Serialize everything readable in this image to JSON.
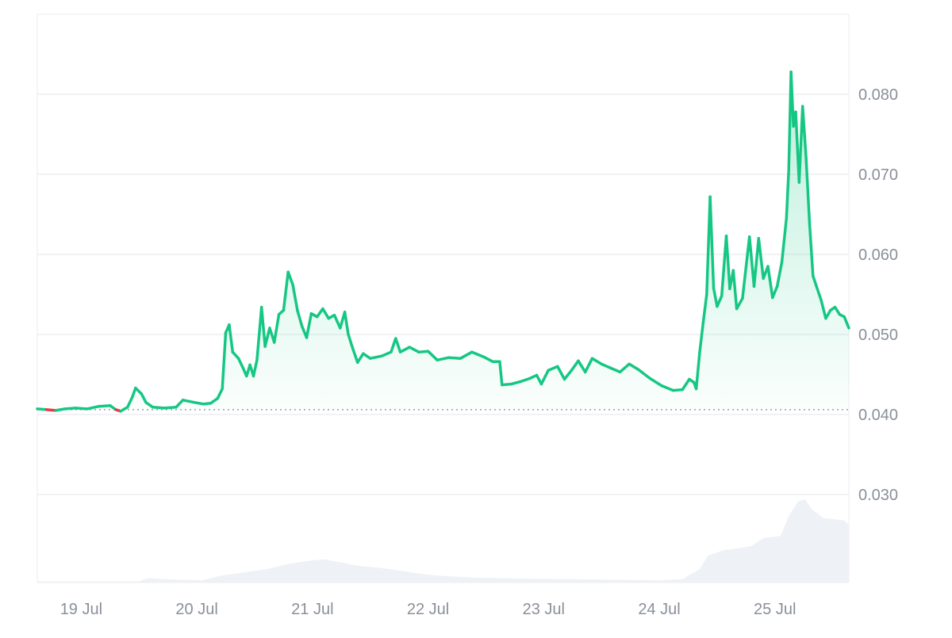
{
  "chart_data": {
    "type": "area",
    "title": "",
    "xlabel": "",
    "ylabel": "",
    "ylim": [
      0.019,
      0.09
    ],
    "y_ticks": [
      "0.080",
      "0.070",
      "0.060",
      "0.050",
      "0.040",
      "0.030"
    ],
    "y_tick_values": [
      0.08,
      0.07,
      0.06,
      0.05,
      0.04,
      0.03
    ],
    "x_ticks": [
      "19 Jul",
      "20 Jul",
      "21 Jul",
      "22 Jul",
      "23 Jul",
      "24 Jul",
      "25 Jul"
    ],
    "x_tick_days": [
      0,
      1,
      2,
      3,
      4,
      5,
      6
    ],
    "xlim_days": [
      -0.38,
      6.64
    ],
    "baseline": 0.0406,
    "grid": true,
    "colors": {
      "up": "#16c784",
      "down": "#ea3943",
      "volume": "#eef1f5",
      "grid": "#eceef2",
      "baseline": "#9aa0a6"
    },
    "series": [
      {
        "values": [
          [
            -0.38,
            0.0407
          ],
          [
            -0.3,
            0.0406
          ],
          [
            -0.22,
            0.0405
          ],
          [
            -0.14,
            0.0407
          ],
          [
            -0.05,
            0.0408
          ],
          [
            0.05,
            0.0407
          ],
          [
            0.15,
            0.041
          ],
          [
            0.25,
            0.0411
          ],
          [
            0.3,
            0.0406
          ],
          [
            0.34,
            0.0404
          ],
          [
            0.4,
            0.0409
          ],
          [
            0.44,
            0.0421
          ],
          [
            0.47,
            0.0433
          ],
          [
            0.52,
            0.0426
          ],
          [
            0.56,
            0.0415
          ],
          [
            0.62,
            0.0409
          ],
          [
            0.72,
            0.0408
          ],
          [
            0.82,
            0.0409
          ],
          [
            0.88,
            0.0418
          ],
          [
            0.98,
            0.0415
          ],
          [
            1.06,
            0.0413
          ],
          [
            1.12,
            0.0414
          ],
          [
            1.18,
            0.042
          ],
          [
            1.22,
            0.0432
          ],
          [
            1.25,
            0.0502
          ],
          [
            1.28,
            0.0512
          ],
          [
            1.31,
            0.0478
          ],
          [
            1.36,
            0.047
          ],
          [
            1.4,
            0.0458
          ],
          [
            1.43,
            0.0448
          ],
          [
            1.46,
            0.0462
          ],
          [
            1.49,
            0.0448
          ],
          [
            1.52,
            0.0468
          ],
          [
            1.56,
            0.0534
          ],
          [
            1.59,
            0.0485
          ],
          [
            1.63,
            0.0508
          ],
          [
            1.67,
            0.049
          ],
          [
            1.71,
            0.0525
          ],
          [
            1.75,
            0.053
          ],
          [
            1.79,
            0.0578
          ],
          [
            1.83,
            0.0562
          ],
          [
            1.87,
            0.053
          ],
          [
            1.91,
            0.051
          ],
          [
            1.95,
            0.0496
          ],
          [
            1.99,
            0.0526
          ],
          [
            2.04,
            0.0522
          ],
          [
            2.09,
            0.0532
          ],
          [
            2.14,
            0.052
          ],
          [
            2.19,
            0.0524
          ],
          [
            2.24,
            0.0508
          ],
          [
            2.28,
            0.0528
          ],
          [
            2.31,
            0.05
          ],
          [
            2.35,
            0.0482
          ],
          [
            2.39,
            0.0465
          ],
          [
            2.44,
            0.0476
          ],
          [
            2.5,
            0.047
          ],
          [
            2.6,
            0.0473
          ],
          [
            2.68,
            0.0478
          ],
          [
            2.72,
            0.0495
          ],
          [
            2.76,
            0.0478
          ],
          [
            2.84,
            0.0484
          ],
          [
            2.92,
            0.0478
          ],
          [
            3.0,
            0.0479
          ],
          [
            3.08,
            0.0468
          ],
          [
            3.18,
            0.0471
          ],
          [
            3.28,
            0.047
          ],
          [
            3.38,
            0.0478
          ],
          [
            3.48,
            0.0472
          ],
          [
            3.56,
            0.0466
          ],
          [
            3.62,
            0.0466
          ],
          [
            3.64,
            0.0437
          ],
          [
            3.72,
            0.0438
          ],
          [
            3.8,
            0.0441
          ],
          [
            3.88,
            0.0445
          ],
          [
            3.94,
            0.0449
          ],
          [
            3.98,
            0.0438
          ],
          [
            4.04,
            0.0455
          ],
          [
            4.12,
            0.046
          ],
          [
            4.18,
            0.0444
          ],
          [
            4.24,
            0.0455
          ],
          [
            4.3,
            0.0467
          ],
          [
            4.36,
            0.0453
          ],
          [
            4.42,
            0.047
          ],
          [
            4.5,
            0.0463
          ],
          [
            4.58,
            0.0458
          ],
          [
            4.66,
            0.0453
          ],
          [
            4.74,
            0.0463
          ],
          [
            4.82,
            0.0456
          ],
          [
            4.92,
            0.0445
          ],
          [
            5.02,
            0.0436
          ],
          [
            5.12,
            0.043
          ],
          [
            5.2,
            0.0431
          ],
          [
            5.26,
            0.0444
          ],
          [
            5.3,
            0.044
          ],
          [
            5.32,
            0.0432
          ],
          [
            5.35,
            0.0478
          ],
          [
            5.38,
            0.0515
          ],
          [
            5.41,
            0.055
          ],
          [
            5.44,
            0.0672
          ],
          [
            5.47,
            0.0558
          ],
          [
            5.5,
            0.0535
          ],
          [
            5.54,
            0.0548
          ],
          [
            5.58,
            0.0623
          ],
          [
            5.61,
            0.0557
          ],
          [
            5.64,
            0.058
          ],
          [
            5.67,
            0.0532
          ],
          [
            5.72,
            0.0545
          ],
          [
            5.78,
            0.0622
          ],
          [
            5.82,
            0.056
          ],
          [
            5.86,
            0.062
          ],
          [
            5.9,
            0.057
          ],
          [
            5.94,
            0.0585
          ],
          [
            5.98,
            0.0546
          ],
          [
            6.02,
            0.056
          ],
          [
            6.06,
            0.059
          ],
          [
            6.1,
            0.0645
          ],
          [
            6.12,
            0.0705
          ],
          [
            6.14,
            0.0828
          ],
          [
            6.16,
            0.076
          ],
          [
            6.18,
            0.0778
          ],
          [
            6.21,
            0.069
          ],
          [
            6.24,
            0.0785
          ],
          [
            6.27,
            0.072
          ],
          [
            6.3,
            0.0638
          ],
          [
            6.33,
            0.0573
          ],
          [
            6.36,
            0.056
          ],
          [
            6.4,
            0.0543
          ],
          [
            6.44,
            0.052
          ],
          [
            6.48,
            0.053
          ],
          [
            6.52,
            0.0534
          ],
          [
            6.56,
            0.0525
          ],
          [
            6.6,
            0.0522
          ],
          [
            6.64,
            0.0508
          ]
        ]
      }
    ],
    "volume": [
      [
        -0.38,
        0.1
      ],
      [
        0.5,
        0.1
      ],
      [
        0.58,
        0.4
      ],
      [
        0.7,
        0.3
      ],
      [
        1.05,
        0.2
      ],
      [
        1.2,
        0.6
      ],
      [
        1.4,
        0.9
      ],
      [
        1.6,
        1.2
      ],
      [
        1.8,
        1.7
      ],
      [
        2.0,
        2.0
      ],
      [
        2.1,
        2.1
      ],
      [
        2.2,
        1.9
      ],
      [
        2.4,
        1.5
      ],
      [
        2.6,
        1.3
      ],
      [
        2.8,
        1.0
      ],
      [
        3.0,
        0.7
      ],
      [
        3.2,
        0.55
      ],
      [
        3.4,
        0.45
      ],
      [
        3.8,
        0.35
      ],
      [
        4.2,
        0.3
      ],
      [
        4.6,
        0.25
      ],
      [
        5.0,
        0.2
      ],
      [
        5.2,
        0.3
      ],
      [
        5.35,
        1.2
      ],
      [
        5.42,
        2.4
      ],
      [
        5.55,
        2.9
      ],
      [
        5.7,
        3.1
      ],
      [
        5.8,
        3.3
      ],
      [
        5.9,
        4.0
      ],
      [
        6.05,
        4.2
      ],
      [
        6.12,
        6.0
      ],
      [
        6.2,
        7.3
      ],
      [
        6.26,
        7.5
      ],
      [
        6.32,
        6.6
      ],
      [
        6.42,
        5.8
      ],
      [
        6.6,
        5.6
      ],
      [
        6.64,
        5.2
      ]
    ]
  }
}
